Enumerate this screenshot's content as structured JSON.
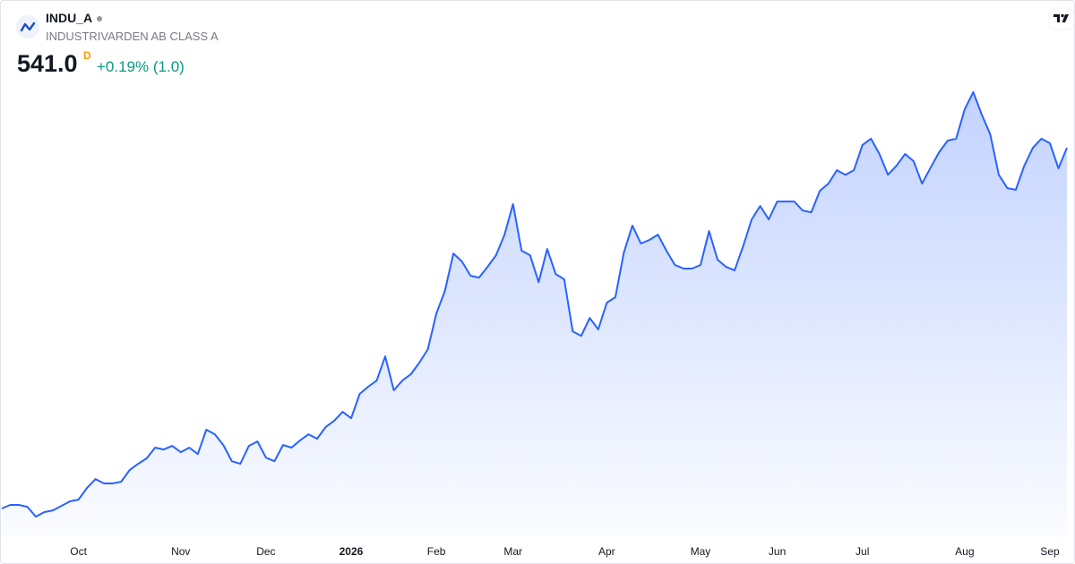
{
  "header": {
    "symbol": "INDU_A",
    "name": "INDUSTRIVARDEN AB CLASS A",
    "price": "541.0",
    "interval": "D",
    "change": "+0.19% (1.0)"
  },
  "chart_data": {
    "type": "area",
    "color": "#2962ff",
    "categories": [
      null,
      null,
      null,
      null,
      null,
      null,
      null,
      null,
      null,
      "Oct",
      null,
      null,
      null,
      null,
      null,
      null,
      null,
      null,
      null,
      null,
      null,
      "Nov",
      null,
      null,
      null,
      null,
      null,
      null,
      null,
      null,
      null,
      "Dec",
      null,
      null,
      null,
      null,
      null,
      null,
      null,
      null,
      null,
      "2026",
      null,
      null,
      null,
      null,
      null,
      null,
      null,
      null,
      null,
      "Feb",
      null,
      null,
      null,
      null,
      null,
      null,
      null,
      null,
      "Mar",
      null,
      null,
      null,
      null,
      null,
      null,
      null,
      null,
      null,
      null,
      "Apr",
      null,
      null,
      null,
      null,
      null,
      null,
      null,
      null,
      null,
      null,
      "May",
      null,
      null,
      null,
      null,
      null,
      null,
      null,
      null,
      "Jun",
      null,
      null,
      null,
      null,
      null,
      null,
      null,
      null,
      null,
      "Jul",
      null,
      null,
      null,
      null,
      null,
      null,
      null,
      null,
      null,
      null,
      null,
      "Aug",
      null,
      null,
      null,
      null,
      null,
      null,
      null,
      null,
      null,
      "Sep",
      null,
      null
    ],
    "values": [
      349.6,
      351.5,
      351.5,
      350.5,
      345.3,
      347.7,
      348.6,
      351.0,
      353.4,
      354.3,
      360.5,
      365.2,
      362.9,
      362.9,
      363.8,
      370.0,
      373.3,
      376.2,
      381.9,
      380.9,
      382.8,
      379.5,
      381.9,
      378.5,
      391.4,
      389.0,
      383.3,
      374.7,
      373.3,
      382.8,
      385.2,
      376.6,
      374.7,
      383.3,
      381.9,
      385.7,
      389.0,
      386.6,
      392.8,
      396.1,
      400.9,
      397.5,
      410.4,
      414.2,
      417.5,
      430.3,
      412.3,
      417.5,
      420.8,
      427.0,
      434.1,
      453.1,
      465.0,
      484.9,
      480.7,
      473.1,
      472.1,
      477.8,
      484.0,
      494.9,
      511.1,
      486.4,
      484.0,
      469.7,
      487.3,
      474.0,
      471.2,
      443.6,
      441.2,
      450.7,
      444.6,
      458.8,
      461.7,
      485.4,
      499.7,
      490.2,
      492.1,
      494.9,
      486.4,
      478.8,
      476.9,
      476.9,
      478.8,
      496.8,
      481.6,
      477.8,
      475.9,
      488.7,
      503.0,
      510.1,
      503.0,
      512.5,
      512.5,
      512.5,
      507.7,
      506.8,
      518.2,
      522.0,
      529.1,
      526.7,
      529.1,
      542.4,
      545.8,
      537.7,
      526.7,
      531.5,
      537.7,
      533.9,
      522.0,
      530.5,
      538.6,
      544.8,
      545.8,
      561.4,
      570.5,
      558.6,
      548.1,
      526.7,
      519.6,
      518.7,
      531.5,
      541.0,
      545.8,
      543.4,
      530.1,
      541.0
    ],
    "ylim": [
      334.4,
      619.4
    ]
  }
}
